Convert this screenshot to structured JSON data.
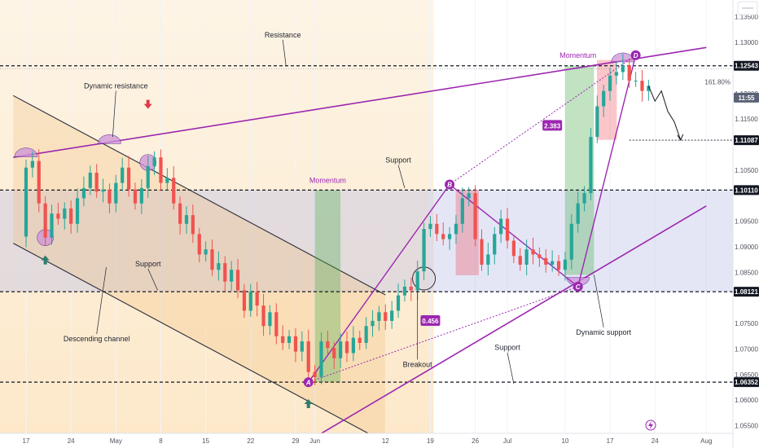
{
  "chart_data": {
    "type": "candlestick",
    "ylim": [
      1.0535,
      1.1383
    ],
    "y_ticks": [
      "1.13500",
      "1.13000",
      "1.12543",
      "1.12000",
      "1.11500",
      "1.11087",
      "1.10500",
      "1.10110",
      "1.09500",
      "1.09000",
      "1.08500",
      "1.08121",
      "1.07500",
      "1.07000",
      "1.06500",
      "1.06352",
      "1.06000",
      "1.05500"
    ],
    "x_ticks": [
      {
        "label": "17",
        "day": 0
      },
      {
        "label": "24",
        "day": 7
      },
      {
        "label": "May",
        "day": 14
      },
      {
        "label": "8",
        "day": 21
      },
      {
        "label": "15",
        "day": 28
      },
      {
        "label": "22",
        "day": 35
      },
      {
        "label": "29",
        "day": 42
      },
      {
        "label": "Jun",
        "day": 45
      },
      {
        "label": "12",
        "day": 56
      },
      {
        "label": "19",
        "day": 63
      },
      {
        "label": "26",
        "day": 70
      },
      {
        "label": "Jul",
        "day": 75
      },
      {
        "label": "10",
        "day": 84
      },
      {
        "label": "17",
        "day": 91
      },
      {
        "label": "24",
        "day": 98
      },
      {
        "label": "Aug",
        "day": 106
      }
    ],
    "current_price_tag": "11:55",
    "price_levels": [
      {
        "name": "resistance",
        "price": "1.12543",
        "value": 1.12543,
        "color": "#131722"
      },
      {
        "name": "target",
        "price": "1.11087",
        "value": 1.11087,
        "color": "#131722"
      },
      {
        "name": "support-upper",
        "price": "1.10110",
        "value": 1.1011,
        "color": "#131722"
      },
      {
        "name": "support-middle",
        "price": "1.08121",
        "value": 1.08121,
        "color": "#131722"
      },
      {
        "name": "support-lower",
        "price": "1.06352",
        "value": 1.06352,
        "color": "#131722"
      }
    ],
    "close_series": [
      [
        -2,
        1.092
      ],
      [
        0,
        1.1055
      ],
      [
        1,
        1.1068
      ],
      [
        2,
        1.0985
      ],
      [
        3,
        1.0918
      ],
      [
        4,
        1.0965
      ],
      [
        5,
        1.0955
      ],
      [
        6,
        1.0975
      ],
      [
        7,
        1.0945
      ],
      [
        8,
        1.0995
      ],
      [
        9,
        1.1015
      ],
      [
        10,
        1.1045
      ],
      [
        11,
        1.1008
      ],
      [
        12,
        1.1012
      ],
      [
        13,
        1.0985
      ],
      [
        14,
        1.1025
      ],
      [
        15,
        1.1055
      ],
      [
        16,
        1.1012
      ],
      [
        17,
        1.0985
      ],
      [
        18,
        1.1015
      ],
      [
        19,
        1.1058
      ],
      [
        20,
        1.1075
      ],
      [
        21,
        1.1025
      ],
      [
        22,
        1.1035
      ],
      [
        23,
        1.0985
      ],
      [
        24,
        1.0945
      ],
      [
        25,
        1.0962
      ],
      [
        26,
        1.0925
      ],
      [
        27,
        1.0885
      ],
      [
        28,
        1.0895
      ],
      [
        29,
        1.0855
      ],
      [
        30,
        1.0868
      ],
      [
        31,
        1.0832
      ],
      [
        32,
        1.0855
      ],
      [
        33,
        1.0815
      ],
      [
        34,
        1.0775
      ],
      [
        35,
        1.0812
      ],
      [
        36,
        1.0785
      ],
      [
        37,
        1.0745
      ],
      [
        38,
        1.0772
      ],
      [
        39,
        1.0725
      ],
      [
        40,
        1.0712
      ],
      [
        41,
        1.0725
      ],
      [
        42,
        1.0695
      ],
      [
        43,
        1.0715
      ],
      [
        44,
        1.0655
      ],
      [
        45,
        1.0645
      ],
      [
        46,
        1.0715
      ],
      [
        47,
        1.0702
      ],
      [
        48,
        1.0682
      ],
      [
        49,
        1.0715
      ],
      [
        50,
        1.0692
      ],
      [
        51,
        1.0722
      ],
      [
        52,
        1.0712
      ],
      [
        53,
        1.0745
      ],
      [
        54,
        1.0755
      ],
      [
        55,
        1.0772
      ],
      [
        56,
        1.0755
      ],
      [
        57,
        1.0775
      ],
      [
        58,
        1.0805
      ],
      [
        59,
        1.0822
      ],
      [
        60,
        1.0815
      ],
      [
        61,
        1.0852
      ],
      [
        62,
        1.0935
      ],
      [
        63,
        1.0945
      ],
      [
        64,
        1.0925
      ],
      [
        65,
        1.0915
      ],
      [
        66,
        1.0925
      ],
      [
        67,
        1.0945
      ],
      [
        68,
        1.0995
      ],
      [
        69,
        1.1005
      ],
      [
        70,
        1.0915
      ],
      [
        71,
        1.0865
      ],
      [
        72,
        1.0885
      ],
      [
        73,
        1.0925
      ],
      [
        74,
        1.0955
      ],
      [
        75,
        1.0912
      ],
      [
        76,
        1.0882
      ],
      [
        77,
        1.0865
      ],
      [
        78,
        1.0895
      ],
      [
        79,
        1.0885
      ],
      [
        80,
        1.0878
      ],
      [
        81,
        1.0865
      ],
      [
        82,
        1.0872
      ],
      [
        83,
        1.0855
      ],
      [
        84,
        1.0875
      ],
      [
        85,
        1.0945
      ],
      [
        86,
        1.0985
      ],
      [
        87,
        1.1005
      ],
      [
        88,
        1.1115
      ],
      [
        89,
        1.1175
      ],
      [
        90,
        1.1205
      ],
      [
        91,
        1.1235
      ],
      [
        92,
        1.1242
      ],
      [
        93,
        1.1255
      ],
      [
        94,
        1.1225
      ],
      [
        95,
        1.1225
      ],
      [
        96,
        1.1205
      ],
      [
        97,
        1.1215
      ]
    ],
    "projection": [
      [
        97,
        1.1215
      ],
      [
        98,
        1.1185
      ],
      [
        99,
        1.1205
      ],
      [
        100,
        1.1165
      ],
      [
        101,
        1.1145
      ],
      [
        102,
        1.1109
      ]
    ],
    "channel": {
      "upper": [
        [
          -2,
          1.1196
        ],
        [
          56,
          1.0806
        ]
      ],
      "lower": [
        [
          -2,
          1.0907
        ],
        [
          56,
          1.0517
        ]
      ],
      "fill": "#f2bc75"
    },
    "dynamic_resistance": [
      [
        -2,
        1.1075
      ],
      [
        106,
        1.129
      ]
    ],
    "dynamic_support": [
      [
        44,
        1.052
      ],
      [
        106,
        1.098
      ]
    ],
    "momentum_zones": [
      {
        "label": "Momentum",
        "start": 45,
        "end": 49,
        "low": 1.0635,
        "high": 1.1011,
        "color": "#4caf50"
      },
      {
        "label": "Momentum",
        "start": 84,
        "end": 88.5,
        "low": 1.0845,
        "high": 1.1254,
        "color": "#4caf50"
      }
    ],
    "red_zones": [
      {
        "start": 67,
        "end": 70.5,
        "low": 1.0845,
        "high": 1.1011,
        "color": "#f23645"
      },
      {
        "start": 89,
        "end": 92,
        "low": 1.111,
        "high": 1.1265,
        "color": "#f23645"
      }
    ],
    "harmonic_points": [
      {
        "label": "A",
        "day": 44,
        "price": 1.0635
      },
      {
        "label": "B",
        "day": 66,
        "price": 1.1022
      },
      {
        "label": "C",
        "day": 86,
        "price": 1.0822
      },
      {
        "label": "D",
        "day": 95,
        "price": 1.1275
      }
    ],
    "ratios": [
      {
        "value": "0.456",
        "day": 63,
        "price": 1.0755
      },
      {
        "value": "2.383",
        "day": 82,
        "price": 1.1137
      }
    ],
    "fib_label": "161.80%",
    "annotations": [
      {
        "name": "resistance-label",
        "text": "Resistance",
        "day": 40,
        "price": 1.131,
        "color": "#1e222d"
      },
      {
        "name": "dynamic-resistance-label",
        "text": "Dynamic resistance",
        "day": 14,
        "price": 1.121,
        "color": "#1e222d"
      },
      {
        "name": "support-upper-label",
        "text": "Support",
        "day": 58,
        "price": 1.1065,
        "color": "#1e222d"
      },
      {
        "name": "support-middle-label",
        "text": "Support",
        "day": 19,
        "price": 1.0862,
        "color": "#1e222d"
      },
      {
        "name": "support-lower-label",
        "text": "Support",
        "day": 75,
        "price": 1.0698,
        "color": "#1e222d"
      },
      {
        "name": "descending-channel-label",
        "text": "Descending channel",
        "day": 11,
        "price": 1.0715,
        "color": "#1e222d"
      },
      {
        "name": "breakout-label",
        "text": "Breakout",
        "day": 61,
        "price": 1.0665,
        "color": "#1e222d"
      },
      {
        "name": "dynamic-support-label",
        "text": "Dynamic support",
        "day": 90,
        "price": 1.0728,
        "color": "#1e222d"
      },
      {
        "name": "momentum-label-1",
        "text": "Momentum",
        "day": 47,
        "price": 1.1025,
        "color": "#9c27b0"
      },
      {
        "name": "momentum-label-2",
        "text": "Momentum",
        "day": 86,
        "price": 1.127,
        "color": "#9c27b0"
      }
    ]
  },
  "colors": {
    "up": "#26a69a",
    "down": "#ef5350",
    "purple": "#9c27b0",
    "zone_support": "#b7bde8",
    "grid": "#f0f3fa",
    "axis_text": "#50535e",
    "tag_bg": "#131722",
    "arrow_up": "#2e7d6b",
    "arrow_down": "#e0394d"
  },
  "icons": {
    "flash": "lightning-icon"
  }
}
